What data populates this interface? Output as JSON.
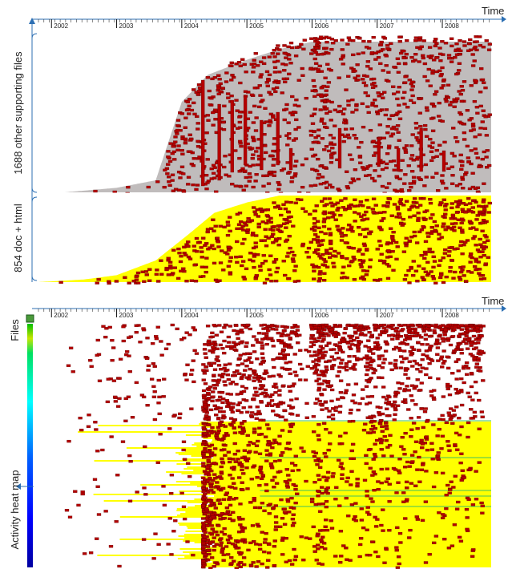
{
  "chart_data": [
    {
      "type": "timeline",
      "axis_title": "Time",
      "x_ticks": [
        "2002",
        "2003",
        "2004",
        "2005",
        "2006",
        "2007",
        "2008"
      ],
      "xlim": [
        2001.8,
        2008.75
      ],
      "groups": [
        {
          "label": "1688 other supporting files",
          "file_count": 1688,
          "lifetime_color": "#c0bcbc",
          "activity_color": "#b50000",
          "first_appearance": [
            [
              2002.2,
              0.0
            ],
            [
              2003.0,
              0.03
            ],
            [
              2003.6,
              0.08
            ],
            [
              2004.0,
              0.6
            ],
            [
              2004.4,
              0.78
            ],
            [
              2005.0,
              0.88
            ],
            [
              2005.5,
              0.95
            ],
            [
              2006.0,
              1.0
            ]
          ]
        },
        {
          "label": "854 doc + html",
          "file_count": 854,
          "lifetime_color": "#ffff00",
          "activity_color": "#b50000",
          "first_appearance": [
            [
              2001.8,
              0.0
            ],
            [
              2002.5,
              0.03
            ],
            [
              2003.0,
              0.08
            ],
            [
              2003.6,
              0.25
            ],
            [
              2004.1,
              0.55
            ],
            [
              2004.5,
              0.8
            ],
            [
              2005.0,
              0.92
            ],
            [
              2005.5,
              1.0
            ]
          ]
        }
      ]
    },
    {
      "type": "heatmap",
      "axis_title": "Time",
      "y_title": "Files",
      "legend_title": "Activity heat map",
      "x_ticks": [
        "2002",
        "2003",
        "2004",
        "2005",
        "2006",
        "2007",
        "2008"
      ],
      "xlim": [
        2001.8,
        2008.75
      ],
      "color_scale": [
        "#00c000",
        "#c8e600",
        "#00ffff",
        "#0060ff",
        "#0000ff",
        "#0000a0"
      ],
      "lifetime_color": "#ffff00",
      "activity_color": "#b50000"
    }
  ]
}
